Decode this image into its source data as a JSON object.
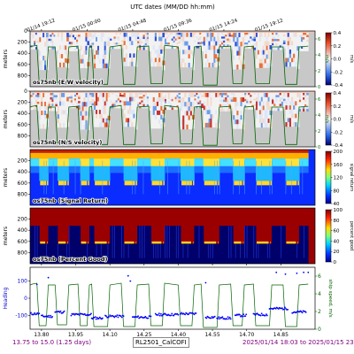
{
  "page_title": "",
  "top_axis": {
    "title": "UTC dates (MM/DD hh:mm)",
    "ticks": [
      {
        "label": "01/14 19:12",
        "x": 13.8
      },
      {
        "label": "01/15 00:00",
        "x": 14.0
      },
      {
        "label": "01/15 04:48",
        "x": 14.2
      },
      {
        "label": "01/15 09:36",
        "x": 14.4
      },
      {
        "label": "01/15 14:24",
        "x": 14.6
      },
      {
        "label": "01/15 19:12",
        "x": 14.8
      }
    ]
  },
  "footer": {
    "left": "13.75 to 15.0 (1.25 days)",
    "center": "RL2501_CalCOFI",
    "right": "2025/01/14 18:03 to 2025/01/15 23:58"
  },
  "colors": {
    "ship_speed_line": "#006400",
    "missing_data": "#c8c8c8",
    "heading_points": "#0000ff"
  },
  "chart_data": [
    {
      "type": "heatmap",
      "id": "u-velocity",
      "panel_label": "os75nb (E/W velocity)",
      "xlim": [
        13.75,
        15.0
      ],
      "ylim_depth_m": [
        0,
        1000
      ],
      "yticks": [
        0,
        200,
        400,
        600,
        800
      ],
      "ylabel": "meters",
      "colormap": "diverging",
      "colorbar": {
        "label": "m/s",
        "min": -0.4,
        "max": 0.4,
        "ticks": [
          "0.4",
          "0.2",
          "0.0",
          "-0.2",
          "-0.4"
        ]
      },
      "overlay": {
        "name": "ship speed",
        "axis_label": "m/s",
        "ticks": [
          "6",
          "4",
          "2",
          "0"
        ],
        "range": [
          0,
          7
        ]
      }
    },
    {
      "type": "heatmap",
      "id": "v-velocity",
      "panel_label": "os75nb (N/S velocity)",
      "xlim": [
        13.75,
        15.0
      ],
      "ylim_depth_m": [
        0,
        1000
      ],
      "yticks": [
        0,
        200,
        400,
        600,
        800
      ],
      "ylabel": "meters",
      "colormap": "diverging",
      "colorbar": {
        "label": "m/s",
        "min": -0.4,
        "max": 0.4,
        "ticks": [
          "0.4",
          "0.2",
          "0.0",
          "-0.2",
          "-0.4"
        ]
      },
      "overlay": {
        "name": "ship speed",
        "axis_label": "m/s",
        "ticks": [
          "6",
          "4",
          "2",
          "0"
        ],
        "range": [
          0,
          7
        ]
      }
    },
    {
      "type": "heatmap",
      "id": "signal-return",
      "panel_label": "os75nb (Signal Return)",
      "xlim": [
        13.75,
        15.0
      ],
      "ylim_depth_m": [
        0,
        1000
      ],
      "yticks": [
        200,
        400,
        600,
        800
      ],
      "ylabel": "meters",
      "colormap": "jet",
      "colorbar": {
        "label": "signal return",
        "min": 20,
        "max": 200,
        "ticks": [
          "200",
          "160",
          "120",
          "80",
          "40"
        ]
      }
    },
    {
      "type": "heatmap",
      "id": "percent-good",
      "panel_label": "os75nb (Percent Good)",
      "xlim": [
        13.75,
        15.0
      ],
      "ylim_depth_m": [
        0,
        1000
      ],
      "yticks": [
        200,
        400,
        600,
        800
      ],
      "ylabel": "meters",
      "xlabel": "decimal day",
      "xticks": [
        13.8,
        13.95,
        14.1,
        14.25,
        14.4,
        14.55,
        14.7,
        14.85
      ],
      "colormap": "jet",
      "colorbar": {
        "label": "percent good",
        "min": 0,
        "max": 100,
        "ticks": [
          "100",
          "80",
          "60",
          "40",
          "20",
          "0"
        ]
      }
    },
    {
      "type": "scatter",
      "id": "heading-speed",
      "ylabel": "Heading",
      "ylim": [
        -180,
        180
      ],
      "yticks": [
        -100,
        0,
        100
      ],
      "xlim": [
        13.75,
        15.0
      ],
      "xticks": [
        "13.80",
        "13.95",
        "14.10",
        "14.25",
        "14.40",
        "14.55",
        "14.70",
        "14.85"
      ],
      "right_axis": {
        "label": "ship speed, m/s",
        "ticks": [
          "6",
          "4",
          "2",
          "0"
        ],
        "range": [
          0,
          7
        ]
      },
      "series": [
        {
          "kind": "heading",
          "segments": [
            [
              13.75,
              13.79,
              -90
            ],
            [
              13.8,
              13.85,
              -105
            ],
            [
              13.86,
              13.9,
              -80
            ],
            [
              13.93,
              14.02,
              -95
            ],
            [
              14.02,
              14.07,
              -115
            ],
            [
              14.08,
              14.16,
              -105
            ],
            [
              14.2,
              14.28,
              -110
            ],
            [
              14.3,
              14.4,
              -95
            ],
            [
              14.41,
              14.48,
              -90
            ],
            [
              14.52,
              14.56,
              -110
            ],
            [
              14.57,
              14.63,
              -115
            ],
            [
              14.65,
              14.7,
              -100
            ],
            [
              14.73,
              14.79,
              -95
            ],
            [
              14.8,
              14.88,
              -60
            ],
            [
              14.9,
              14.96,
              -80
            ]
          ],
          "high_points": [
            [
              13.78,
              80
            ],
            [
              13.83,
              120
            ],
            [
              14.18,
              130
            ],
            [
              14.19,
              100
            ],
            [
              14.52,
              90
            ],
            [
              14.83,
              150
            ],
            [
              14.87,
              140
            ],
            [
              14.92,
              145
            ],
            [
              14.95,
              150
            ],
            [
              14.97,
              150
            ]
          ]
        },
        {
          "kind": "ship_speed",
          "points": [
            [
              13.75,
              5.0
            ],
            [
              13.76,
              5.1
            ],
            [
              13.78,
              5.2
            ],
            [
              13.79,
              0.4
            ],
            [
              13.82,
              0.4
            ],
            [
              13.83,
              5.0
            ],
            [
              13.86,
              5.0
            ],
            [
              13.87,
              0.5
            ],
            [
              13.91,
              0.5
            ],
            [
              13.92,
              5.0
            ],
            [
              13.96,
              5.1
            ],
            [
              13.97,
              0.4
            ],
            [
              14.0,
              0.4
            ],
            [
              14.01,
              5.0
            ],
            [
              14.02,
              5.1
            ],
            [
              14.03,
              0.3
            ],
            [
              14.09,
              0.3
            ],
            [
              14.1,
              5.0
            ],
            [
              14.15,
              5.2
            ],
            [
              14.16,
              0.3
            ],
            [
              14.21,
              0.3
            ],
            [
              14.22,
              5.0
            ],
            [
              14.27,
              5.1
            ],
            [
              14.28,
              0.4
            ],
            [
              14.33,
              0.4
            ],
            [
              14.34,
              5.2
            ],
            [
              14.4,
              5.0
            ],
            [
              14.41,
              0.4
            ],
            [
              14.46,
              0.4
            ],
            [
              14.47,
              5.0
            ],
            [
              14.5,
              5.1
            ],
            [
              14.51,
              0.2
            ],
            [
              14.57,
              0.2
            ],
            [
              14.58,
              5.0
            ],
            [
              14.63,
              5.1
            ],
            [
              14.64,
              0.4
            ],
            [
              14.68,
              0.4
            ],
            [
              14.69,
              5.0
            ],
            [
              14.73,
              5.1
            ],
            [
              14.74,
              0.4
            ],
            [
              14.8,
              0.4
            ],
            [
              14.81,
              5.0
            ],
            [
              14.86,
              5.0
            ],
            [
              14.87,
              0.3
            ],
            [
              14.92,
              0.3
            ],
            [
              14.93,
              5.0
            ],
            [
              14.97,
              5.1
            ]
          ]
        }
      ]
    }
  ]
}
